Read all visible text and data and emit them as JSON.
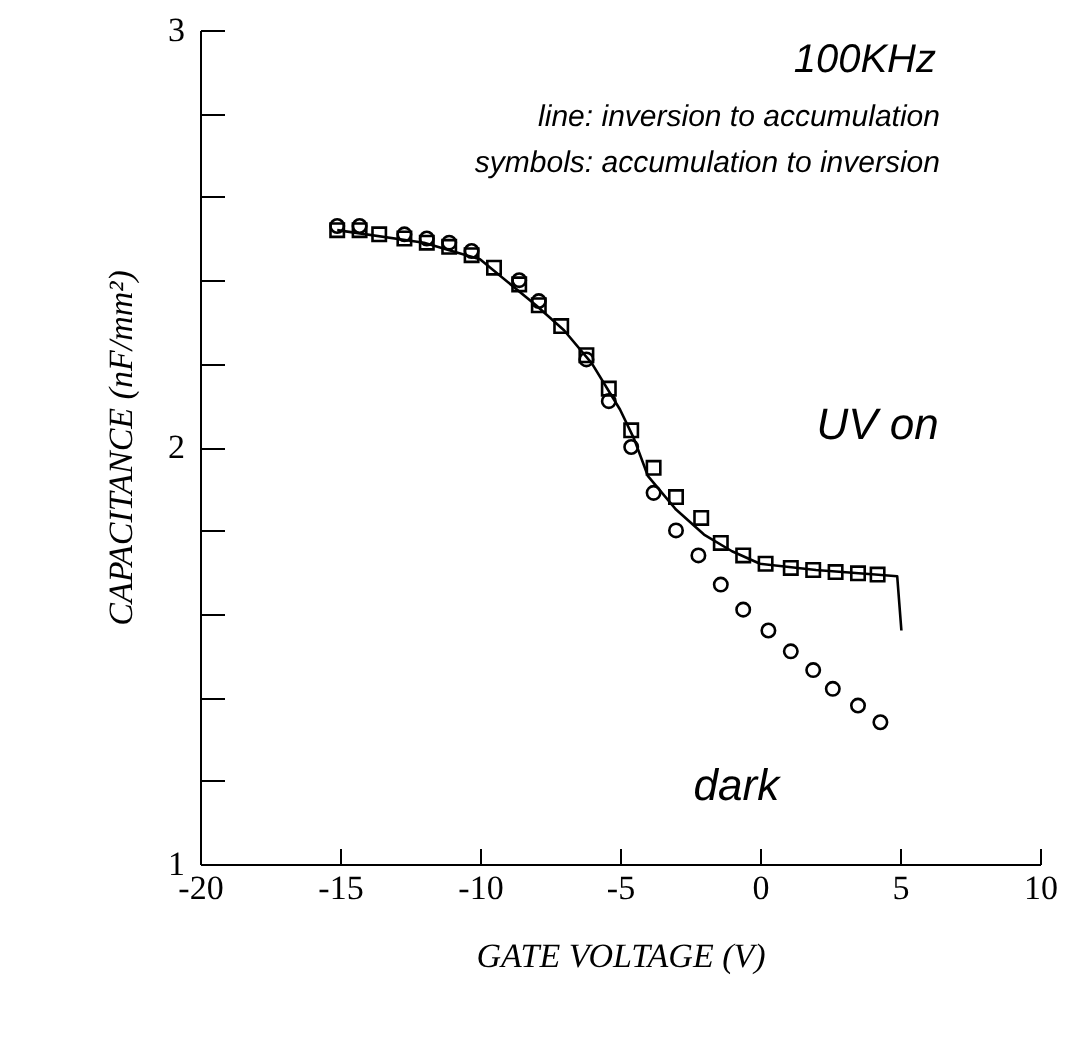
{
  "chart_data": {
    "type": "scatter",
    "xlabel": "GATE VOLTAGE  (V)",
    "ylabel": "CAPACITANCE (nF/mm²)",
    "annotations": [
      "100KHz",
      "line: inversion to accumulation",
      "symbols: accumulation to inversion"
    ],
    "xlim": [
      -20,
      10
    ],
    "xticks": [
      -20,
      -15,
      -10,
      -5,
      0,
      5,
      10
    ],
    "ylim": [
      1,
      3
    ],
    "yticks": [
      1,
      {
        "value": 1.2,
        "label": null
      },
      {
        "value": 1.4,
        "label": null
      },
      {
        "value": 1.6,
        "label": null
      },
      {
        "value": 1.8,
        "label": null
      },
      2,
      {
        "value": 2.2,
        "label": null
      },
      {
        "value": 2.4,
        "label": null
      },
      {
        "value": 2.6,
        "label": null
      },
      {
        "value": 2.8,
        "label": null
      },
      3
    ],
    "grid": false,
    "series": [
      {
        "type": "line",
        "color": "#000000",
        "marker": "none",
        "line_style": "solid",
        "x": [
          -15.1,
          -12,
          -10,
          -8,
          -7,
          -6,
          -5,
          -4.5,
          -4,
          -3,
          -2,
          -1,
          0,
          2,
          4,
          4.9,
          5.05
        ],
        "values": [
          2.52,
          2.49,
          2.45,
          2.34,
          2.28,
          2.2,
          2.09,
          2.02,
          1.93,
          1.85,
          1.79,
          1.75,
          1.72,
          1.705,
          1.695,
          1.69,
          1.56
        ]
      },
      {
        "name": "UV on",
        "color": "#000000",
        "marker": "square",
        "x": [
          -15.1,
          -14.3,
          -13.6,
          -12.7,
          -11.9,
          -11.1,
          -10.3,
          -9.5,
          -8.6,
          -7.9,
          -7.1,
          -6.2,
          -5.4,
          -4.6,
          -3.8,
          -3.0,
          -2.1,
          -1.4,
          -0.6,
          0.2,
          1.1,
          1.9,
          2.7,
          3.5,
          4.2
        ],
        "values": [
          2.52,
          2.52,
          2.51,
          2.5,
          2.49,
          2.48,
          2.46,
          2.43,
          2.39,
          2.34,
          2.29,
          2.22,
          2.14,
          2.04,
          1.95,
          1.88,
          1.83,
          1.77,
          1.74,
          1.72,
          1.71,
          1.705,
          1.7,
          1.697,
          1.694
        ]
      },
      {
        "name": "dark",
        "color": "#000000",
        "marker": "circle",
        "x": [
          -15.1,
          -14.3,
          -13.6,
          -12.7,
          -11.9,
          -11.1,
          -10.3,
          -9.5,
          -8.6,
          -7.9,
          -7.1,
          -6.2,
          -5.4,
          -4.6,
          -3.8,
          -3.0,
          -2.2,
          -1.4,
          -0.6,
          0.3,
          1.1,
          1.9,
          2.6,
          3.5,
          4.3
        ],
        "values": [
          2.53,
          2.53,
          null,
          2.51,
          2.5,
          2.49,
          2.47,
          null,
          2.4,
          2.35,
          null,
          2.21,
          2.11,
          2.0,
          1.89,
          1.8,
          1.74,
          1.67,
          1.61,
          1.56,
          1.51,
          1.465,
          1.42,
          1.38,
          1.34
        ]
      }
    ]
  }
}
